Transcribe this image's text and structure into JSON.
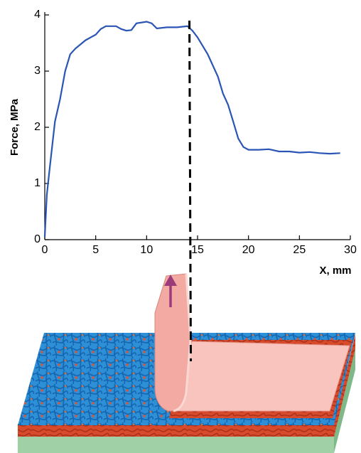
{
  "chart_data": {
    "type": "line",
    "x_label": "X, mm",
    "y_label": "Force, MPa",
    "x": [
      0,
      0.2,
      0.5,
      1,
      1.5,
      2,
      2.5,
      3,
      4,
      5,
      5.5,
      6,
      7,
      7.5,
      8,
      8.5,
      9,
      10,
      10.5,
      11,
      12,
      13,
      14,
      14.5,
      15,
      16,
      17,
      17.5,
      18,
      18.5,
      19,
      19.5,
      20,
      21,
      22,
      23,
      24,
      25,
      26,
      27,
      28,
      29
    ],
    "values": [
      0.05,
      0.8,
      1.3,
      2.1,
      2.5,
      3.0,
      3.3,
      3.4,
      3.55,
      3.65,
      3.75,
      3.8,
      3.8,
      3.75,
      3.72,
      3.73,
      3.85,
      3.88,
      3.85,
      3.76,
      3.78,
      3.78,
      3.8,
      3.72,
      3.6,
      3.3,
      2.9,
      2.6,
      2.4,
      2.1,
      1.8,
      1.65,
      1.6,
      1.6,
      1.61,
      1.57,
      1.57,
      1.55,
      1.56,
      1.54,
      1.53,
      1.54
    ],
    "color": "#2b55b5",
    "vline_x": 14.2,
    "xlim": [
      0,
      30
    ],
    "xticks": [
      0,
      5,
      10,
      15,
      20,
      25,
      30
    ],
    "ylim": [
      0,
      4
    ],
    "yticks": [
      0,
      1,
      2,
      3,
      4
    ]
  }
}
